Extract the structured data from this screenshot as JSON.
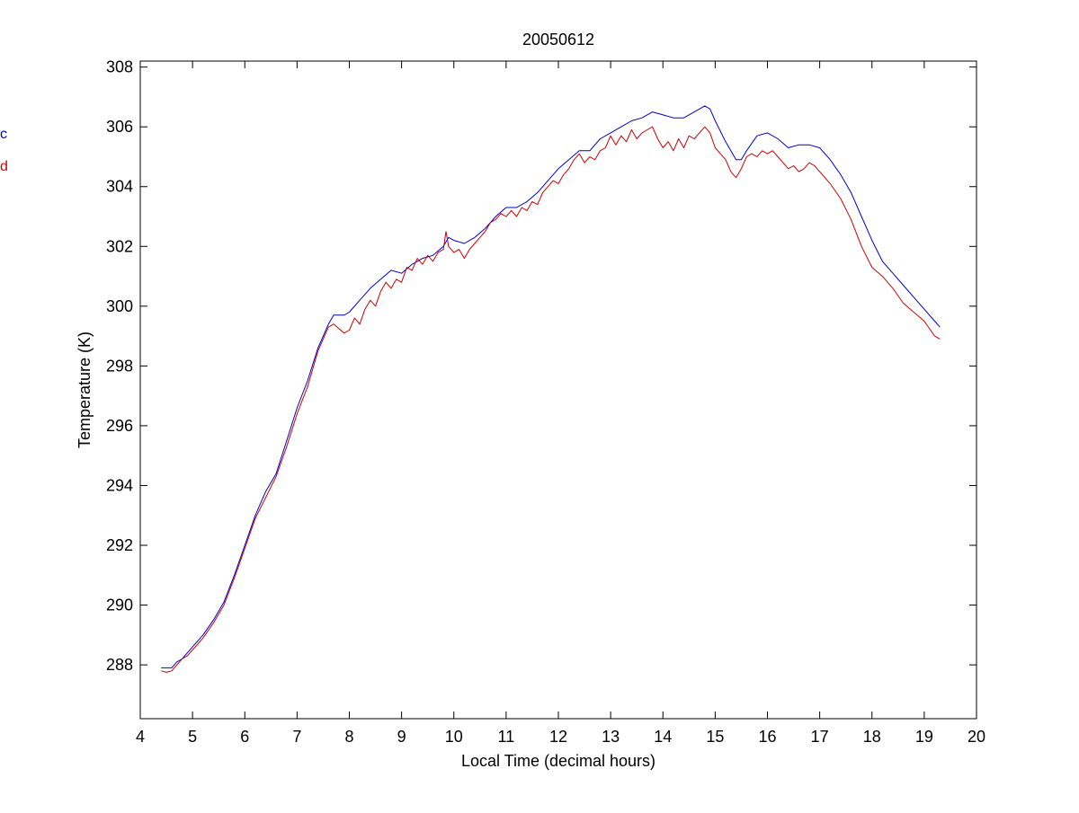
{
  "chart_data": {
    "type": "line",
    "title": "20050612",
    "xlabel": "Local Time (decimal hours)",
    "ylabel": "Temperature (K)",
    "xlim": [
      4,
      20
    ],
    "ylim": [
      286.2,
      308.2
    ],
    "xticks": [
      4,
      5,
      6,
      7,
      8,
      9,
      10,
      11,
      12,
      13,
      14,
      15,
      16,
      17,
      18,
      19,
      20
    ],
    "yticks": [
      288,
      290,
      292,
      294,
      296,
      298,
      300,
      302,
      304,
      306,
      308
    ],
    "grid": false,
    "legend_position": "left, outside plot area",
    "series": [
      {
        "name": "c",
        "color": "#0000cc",
        "points": [
          [
            4.4,
            287.9
          ],
          [
            4.5,
            287.9
          ],
          [
            4.6,
            287.9
          ],
          [
            4.7,
            288.1
          ],
          [
            4.8,
            288.2
          ],
          [
            4.9,
            288.4
          ],
          [
            5.0,
            288.6
          ],
          [
            5.2,
            289.0
          ],
          [
            5.4,
            289.5
          ],
          [
            5.6,
            290.1
          ],
          [
            5.8,
            291.0
          ],
          [
            6.0,
            292.0
          ],
          [
            6.2,
            293.0
          ],
          [
            6.4,
            293.8
          ],
          [
            6.6,
            294.4
          ],
          [
            6.8,
            295.5
          ],
          [
            7.0,
            296.6
          ],
          [
            7.2,
            297.5
          ],
          [
            7.4,
            298.6
          ],
          [
            7.6,
            299.4
          ],
          [
            7.7,
            299.7
          ],
          [
            7.9,
            299.7
          ],
          [
            8.0,
            299.8
          ],
          [
            8.2,
            300.2
          ],
          [
            8.4,
            300.6
          ],
          [
            8.6,
            300.9
          ],
          [
            8.8,
            301.2
          ],
          [
            9.0,
            301.1
          ],
          [
            9.2,
            301.4
          ],
          [
            9.4,
            301.6
          ],
          [
            9.6,
            301.7
          ],
          [
            9.8,
            302.0
          ],
          [
            9.9,
            302.3
          ],
          [
            10.0,
            302.2
          ],
          [
            10.2,
            302.1
          ],
          [
            10.4,
            302.3
          ],
          [
            10.6,
            302.6
          ],
          [
            10.8,
            303.0
          ],
          [
            11.0,
            303.3
          ],
          [
            11.2,
            303.3
          ],
          [
            11.4,
            303.5
          ],
          [
            11.6,
            303.8
          ],
          [
            11.8,
            304.2
          ],
          [
            12.0,
            304.6
          ],
          [
            12.2,
            304.9
          ],
          [
            12.4,
            305.2
          ],
          [
            12.6,
            305.2
          ],
          [
            12.8,
            305.6
          ],
          [
            13.0,
            305.8
          ],
          [
            13.2,
            306.0
          ],
          [
            13.4,
            306.2
          ],
          [
            13.6,
            306.3
          ],
          [
            13.8,
            306.5
          ],
          [
            14.0,
            306.4
          ],
          [
            14.2,
            306.3
          ],
          [
            14.4,
            306.3
          ],
          [
            14.6,
            306.5
          ],
          [
            14.8,
            306.7
          ],
          [
            14.9,
            306.6
          ],
          [
            15.0,
            306.2
          ],
          [
            15.2,
            305.5
          ],
          [
            15.4,
            304.9
          ],
          [
            15.5,
            304.9
          ],
          [
            15.6,
            305.2
          ],
          [
            15.8,
            305.7
          ],
          [
            16.0,
            305.8
          ],
          [
            16.2,
            305.6
          ],
          [
            16.4,
            305.3
          ],
          [
            16.6,
            305.4
          ],
          [
            16.8,
            305.4
          ],
          [
            17.0,
            305.3
          ],
          [
            17.2,
            304.9
          ],
          [
            17.4,
            304.4
          ],
          [
            17.6,
            303.8
          ],
          [
            17.8,
            303.0
          ],
          [
            18.0,
            302.2
          ],
          [
            18.2,
            301.5
          ],
          [
            18.4,
            301.1
          ],
          [
            18.6,
            300.7
          ],
          [
            18.8,
            300.3
          ],
          [
            19.0,
            299.9
          ],
          [
            19.2,
            299.5
          ],
          [
            19.3,
            299.3
          ]
        ]
      },
      {
        "name": "d",
        "color": "#cc0000",
        "points": [
          [
            4.4,
            287.8
          ],
          [
            4.5,
            287.75
          ],
          [
            4.6,
            287.8
          ],
          [
            4.7,
            288.0
          ],
          [
            4.8,
            288.2
          ],
          [
            4.9,
            288.3
          ],
          [
            5.0,
            288.5
          ],
          [
            5.2,
            288.9
          ],
          [
            5.4,
            289.4
          ],
          [
            5.6,
            290.0
          ],
          [
            5.8,
            290.9
          ],
          [
            6.0,
            291.9
          ],
          [
            6.2,
            292.9
          ],
          [
            6.4,
            293.6
          ],
          [
            6.6,
            294.3
          ],
          [
            6.8,
            295.3
          ],
          [
            7.0,
            296.4
          ],
          [
            7.2,
            297.3
          ],
          [
            7.4,
            298.5
          ],
          [
            7.6,
            299.3
          ],
          [
            7.7,
            299.4
          ],
          [
            7.9,
            299.1
          ],
          [
            8.0,
            299.2
          ],
          [
            8.1,
            299.6
          ],
          [
            8.2,
            299.4
          ],
          [
            8.3,
            299.9
          ],
          [
            8.4,
            300.2
          ],
          [
            8.5,
            300.0
          ],
          [
            8.6,
            300.5
          ],
          [
            8.7,
            300.8
          ],
          [
            8.8,
            300.6
          ],
          [
            8.9,
            300.9
          ],
          [
            9.0,
            300.8
          ],
          [
            9.1,
            301.3
          ],
          [
            9.2,
            301.2
          ],
          [
            9.3,
            301.6
          ],
          [
            9.4,
            301.4
          ],
          [
            9.5,
            301.7
          ],
          [
            9.6,
            301.5
          ],
          [
            9.7,
            301.8
          ],
          [
            9.8,
            301.9
          ],
          [
            9.85,
            302.5
          ],
          [
            9.9,
            302.0
          ],
          [
            10.0,
            301.8
          ],
          [
            10.1,
            301.9
          ],
          [
            10.2,
            301.6
          ],
          [
            10.3,
            301.9
          ],
          [
            10.4,
            302.1
          ],
          [
            10.5,
            302.3
          ],
          [
            10.6,
            302.5
          ],
          [
            10.7,
            302.8
          ],
          [
            10.8,
            302.9
          ],
          [
            10.9,
            303.1
          ],
          [
            11.0,
            303.0
          ],
          [
            11.1,
            303.2
          ],
          [
            11.2,
            303.0
          ],
          [
            11.3,
            303.3
          ],
          [
            11.4,
            303.2
          ],
          [
            11.5,
            303.5
          ],
          [
            11.6,
            303.4
          ],
          [
            11.7,
            303.8
          ],
          [
            11.8,
            304.0
          ],
          [
            11.9,
            304.2
          ],
          [
            12.0,
            304.1
          ],
          [
            12.1,
            304.4
          ],
          [
            12.2,
            304.6
          ],
          [
            12.3,
            304.9
          ],
          [
            12.4,
            305.1
          ],
          [
            12.5,
            304.8
          ],
          [
            12.6,
            305.0
          ],
          [
            12.7,
            304.9
          ],
          [
            12.8,
            305.2
          ],
          [
            12.9,
            305.3
          ],
          [
            13.0,
            305.7
          ],
          [
            13.1,
            305.4
          ],
          [
            13.2,
            305.7
          ],
          [
            13.3,
            305.5
          ],
          [
            13.4,
            305.9
          ],
          [
            13.5,
            305.6
          ],
          [
            13.6,
            305.8
          ],
          [
            13.7,
            305.9
          ],
          [
            13.8,
            306.0
          ],
          [
            13.9,
            305.6
          ],
          [
            14.0,
            305.3
          ],
          [
            14.1,
            305.5
          ],
          [
            14.2,
            305.2
          ],
          [
            14.3,
            305.6
          ],
          [
            14.4,
            305.3
          ],
          [
            14.5,
            305.7
          ],
          [
            14.6,
            305.6
          ],
          [
            14.7,
            305.8
          ],
          [
            14.8,
            306.0
          ],
          [
            14.9,
            305.8
          ],
          [
            15.0,
            305.3
          ],
          [
            15.1,
            305.1
          ],
          [
            15.2,
            304.9
          ],
          [
            15.3,
            304.5
          ],
          [
            15.4,
            304.3
          ],
          [
            15.5,
            304.6
          ],
          [
            15.6,
            305.0
          ],
          [
            15.7,
            305.1
          ],
          [
            15.8,
            305.0
          ],
          [
            15.9,
            305.2
          ],
          [
            16.0,
            305.1
          ],
          [
            16.1,
            305.2
          ],
          [
            16.2,
            305.0
          ],
          [
            16.3,
            304.8
          ],
          [
            16.4,
            304.6
          ],
          [
            16.5,
            304.7
          ],
          [
            16.6,
            304.5
          ],
          [
            16.7,
            304.6
          ],
          [
            16.8,
            304.8
          ],
          [
            16.9,
            304.7
          ],
          [
            17.0,
            304.5
          ],
          [
            17.2,
            304.1
          ],
          [
            17.4,
            303.6
          ],
          [
            17.6,
            302.9
          ],
          [
            17.8,
            302.0
          ],
          [
            18.0,
            301.3
          ],
          [
            18.2,
            301.0
          ],
          [
            18.4,
            300.6
          ],
          [
            18.6,
            300.1
          ],
          [
            18.8,
            299.8
          ],
          [
            19.0,
            299.5
          ],
          [
            19.2,
            299.0
          ],
          [
            19.3,
            298.9
          ]
        ]
      }
    ]
  }
}
